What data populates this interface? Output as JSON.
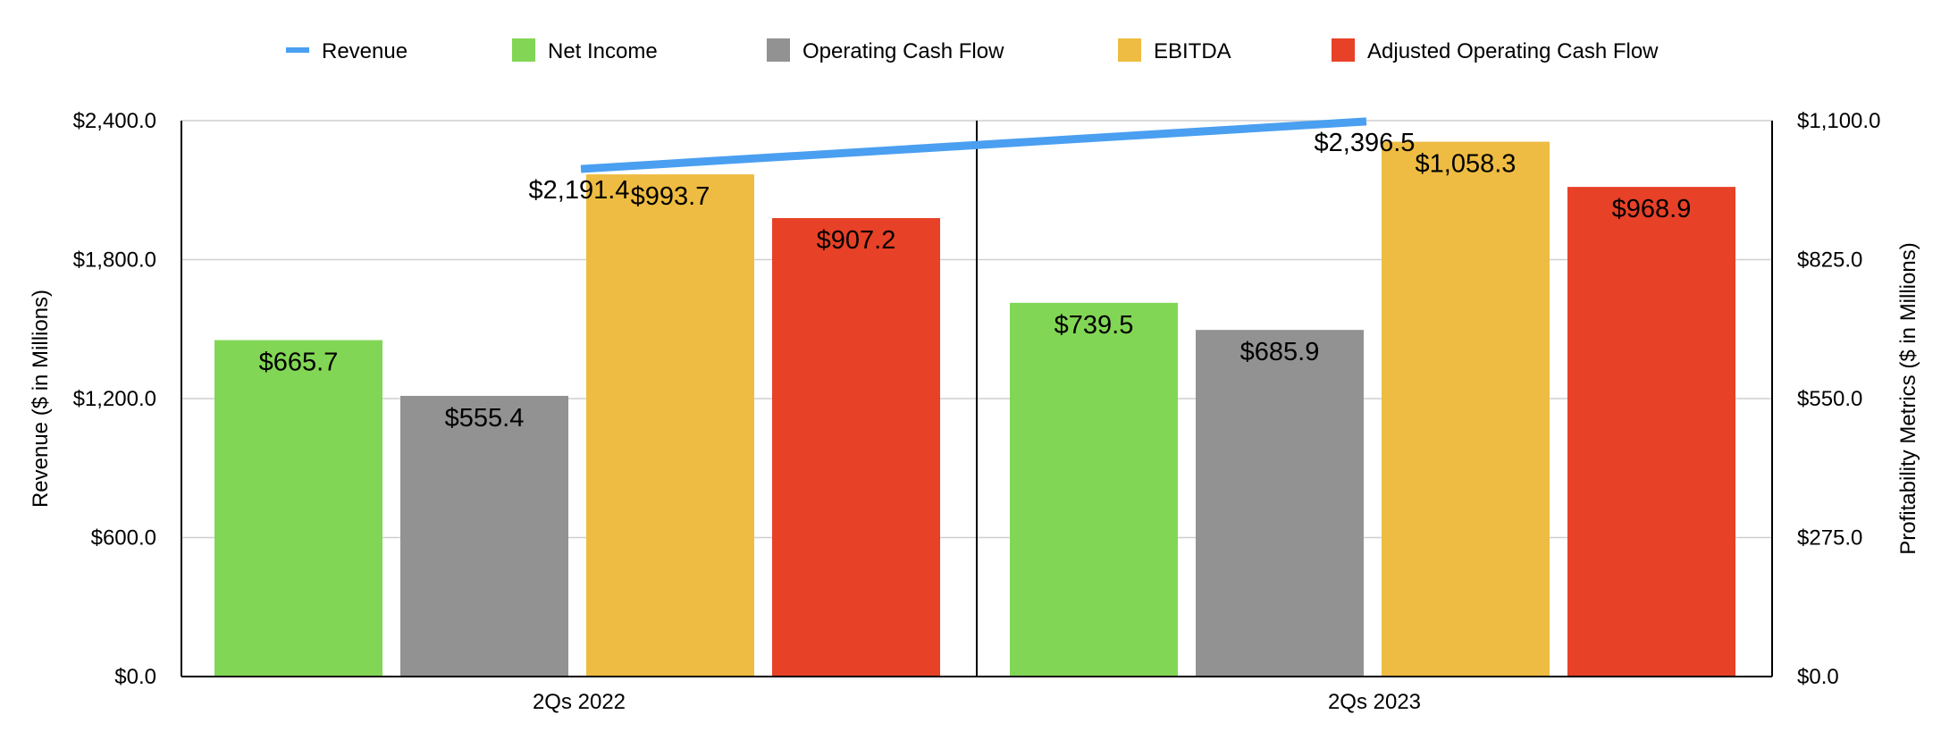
{
  "chart_data": {
    "type": "bar",
    "categories": [
      "2Qs 2022",
      "2Qs 2023"
    ],
    "series": [
      {
        "name": "Net Income",
        "kind": "bar",
        "axis": "right",
        "color": "#82d655",
        "values": [
          665.7,
          739.5
        ],
        "labels": [
          "$665.7",
          "$739.5"
        ]
      },
      {
        "name": "Operating Cash Flow",
        "kind": "bar",
        "axis": "right",
        "color": "#929292",
        "values": [
          555.4,
          685.9
        ],
        "labels": [
          "$555.4",
          "$685.9"
        ]
      },
      {
        "name": "EBITDA",
        "kind": "bar",
        "axis": "right",
        "color": "#eebc42",
        "values": [
          993.7,
          1058.3
        ],
        "labels": [
          "$993.7",
          "$1,058.3"
        ]
      },
      {
        "name": "Adjusted Operating Cash Flow",
        "kind": "bar",
        "axis": "right",
        "color": "#e74127",
        "values": [
          907.2,
          968.9
        ],
        "labels": [
          "$907.2",
          "$968.9"
        ]
      }
    ],
    "line_series": {
      "name": "Revenue",
      "kind": "line",
      "axis": "left",
      "color": "#4a9ff0",
      "values": [
        2191.4,
        2396.5
      ],
      "labels": [
        "$2,191.4",
        "$2,396.5"
      ]
    },
    "legend": [
      "Revenue",
      "Net Income",
      "Operating Cash Flow",
      "EBITDA",
      "Adjusted Operating Cash Flow"
    ],
    "legend_position": "top",
    "ylabel": "Revenue ($ in Millions)",
    "ylabel_right": "Profitability Metrics ($ in Millions)",
    "ylim": [
      0,
      2400
    ],
    "ylim_right": [
      0,
      1100
    ],
    "yticks": [
      "$0.0",
      "$600.0",
      "$1,200.0",
      "$1,800.0",
      "$2,400.0"
    ],
    "yticks_right": [
      "$0.0",
      "$275.0",
      "$550.0",
      "$825.0",
      "$1,100.0"
    ],
    "grid": true
  }
}
